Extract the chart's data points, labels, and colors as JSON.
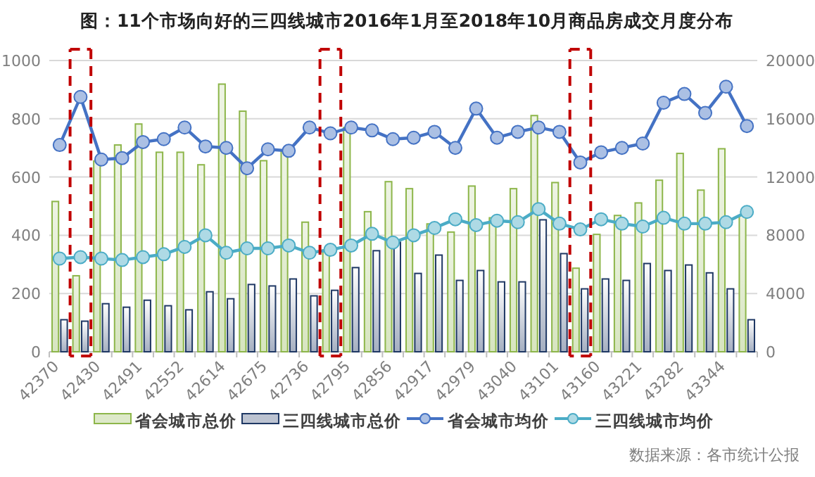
{
  "chart_data": {
    "type": "bar",
    "title": "图：11个市场向好的三四线城市2016年1月至2018年10月商品房成交月度分布",
    "categories": [
      "42370",
      null,
      "42430",
      null,
      "42491",
      null,
      "42552",
      null,
      "42614",
      null,
      "42675",
      null,
      "42736",
      null,
      "42795",
      null,
      "42856",
      null,
      "42917",
      null,
      "42979",
      null,
      "43040",
      null,
      "43101",
      null,
      "43160",
      null,
      "43221",
      null,
      "43282",
      null,
      "43344",
      null
    ],
    "series": [
      {
        "name": "省会城市总价",
        "color": "#8db64a",
        "values": [
          516,
          261,
          655,
          710,
          782,
          685,
          685,
          642,
          919,
          826,
          656,
          690,
          445,
          350,
          770,
          481,
          584,
          560,
          439,
          411,
          569,
          460,
          560,
          811,
          581,
          287,
          403,
          468,
          511,
          589,
          681,
          555,
          697,
          468
        ]
      },
      {
        "name": "三四线城市总价",
        "color": "#1f3864",
        "values": [
          110,
          105,
          165,
          153,
          177,
          158,
          144,
          206,
          182,
          231,
          226,
          250,
          192,
          211,
          289,
          347,
          376,
          269,
          332,
          245,
          279,
          240,
          240,
          453,
          337,
          216,
          250,
          245,
          303,
          279,
          298,
          271,
          216,
          110
        ]
      },
      {
        "name": "省会城市均价",
        "type": "line",
        "axis": "y2",
        "color": "#4472c4",
        "values": [
          14200,
          17500,
          13200,
          13300,
          14400,
          14600,
          15400,
          14100,
          14000,
          12600,
          13900,
          13800,
          15400,
          15000,
          15400,
          15200,
          14600,
          14700,
          15100,
          14000,
          16700,
          14700,
          15100,
          15400,
          15100,
          13000,
          13700,
          14000,
          14300,
          17100,
          17700,
          16400,
          18200,
          15500
        ]
      },
      {
        "name": "三四线城市均价",
        "type": "line",
        "axis": "y2",
        "color": "#4bacc6",
        "values": [
          6400,
          6500,
          6400,
          6300,
          6500,
          6700,
          7200,
          8000,
          6800,
          7100,
          7100,
          7300,
          6800,
          7000,
          7300,
          8100,
          7500,
          8000,
          8500,
          9100,
          8700,
          9000,
          8900,
          9800,
          8800,
          8400,
          9100,
          8800,
          8600,
          9200,
          8800,
          8800,
          8900,
          9600
        ]
      }
    ],
    "ylim": [
      0,
      1000
    ],
    "yticks": [
      0,
      200,
      400,
      600,
      800,
      1000
    ],
    "y2lim": [
      0,
      20000
    ],
    "y2ticks": [
      0,
      4000,
      8000,
      12000,
      16000,
      20000
    ],
    "grid": "y",
    "legend": "bottom",
    "marker": "circle",
    "annotations": [
      "数据来源：各市统计公报"
    ]
  }
}
